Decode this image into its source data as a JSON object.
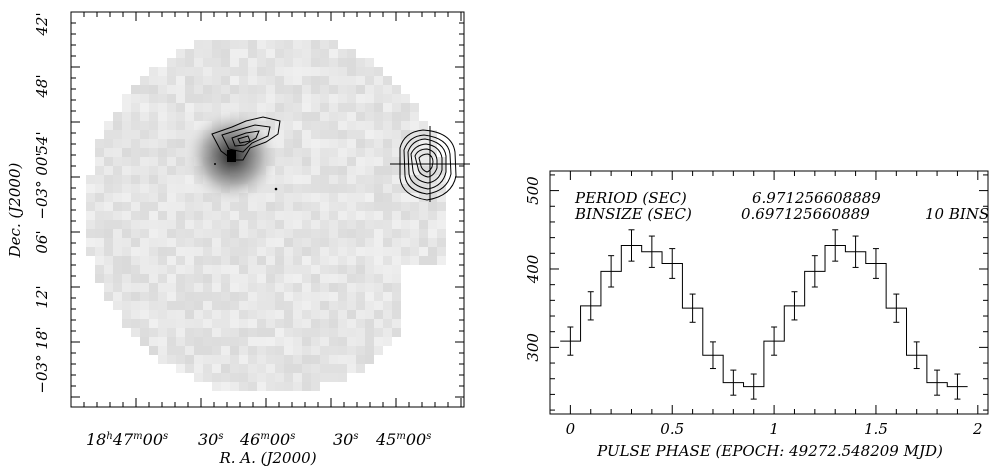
{
  "image_panel": {
    "ra_axis_label": "R. A. (J2000)",
    "dec_axis_label": "Dec. (J2000)",
    "ra_ticks": [
      {
        "h": "18",
        "m": "47",
        "s": "00"
      },
      {
        "s": "30"
      },
      {
        "m": "46",
        "s": "00"
      },
      {
        "s": "30"
      },
      {
        "m": "45",
        "s": "00"
      }
    ],
    "dec_ticks": [
      {
        "deg": "",
        "min": "42",
        "sec": ""
      },
      {
        "deg": "",
        "min": "48",
        "sec": ""
      },
      {
        "deg": "",
        "min": "54",
        "sec": ""
      },
      {
        "deg": "−0",
        "min": "3° 00",
        "sec": ""
      },
      {
        "deg": "",
        "min": "06",
        "sec": ""
      },
      {
        "deg": "",
        "min": "12",
        "sec": ""
      },
      {
        "deg": "−0",
        "min": "3° 18",
        "sec": ""
      }
    ]
  },
  "chart_data": {
    "type": "line",
    "style": "step-histogram-with-errorbars",
    "xlabel": "PULSE PHASE (EPOCH: 49272.548209 MJD)",
    "ylabel": "",
    "xlim": [
      -0.1,
      2.05
    ],
    "ylim": [
      215,
      525
    ],
    "x_ticks": [
      0,
      0.5,
      1,
      1.5,
      2
    ],
    "y_ticks": [
      300,
      400,
      500
    ],
    "annotations": [
      {
        "label": "PERIOD (SEC)",
        "value": "6.971256608889",
        "extra": ""
      },
      {
        "label": "BINSIZE (SEC)",
        "value": "0.697125660889",
        "extra": "10 BINS"
      }
    ],
    "series": [
      {
        "x": [
          0.0,
          0.1,
          0.2,
          0.3,
          0.4,
          0.5,
          0.6,
          0.7,
          0.8,
          0.9,
          1.0,
          1.1,
          1.2,
          1.3,
          1.4,
          1.5,
          1.6,
          1.7,
          1.8,
          1.9
        ],
        "values": [
          308,
          353,
          397,
          430,
          422,
          407,
          350,
          290,
          255,
          250,
          308,
          353,
          397,
          430,
          422,
          407,
          350,
          290,
          255,
          250
        ],
        "errors": [
          18,
          18,
          20,
          20,
          20,
          19,
          18,
          17,
          16,
          16,
          18,
          18,
          20,
          20,
          20,
          19,
          18,
          17,
          16,
          16
        ]
      }
    ]
  }
}
